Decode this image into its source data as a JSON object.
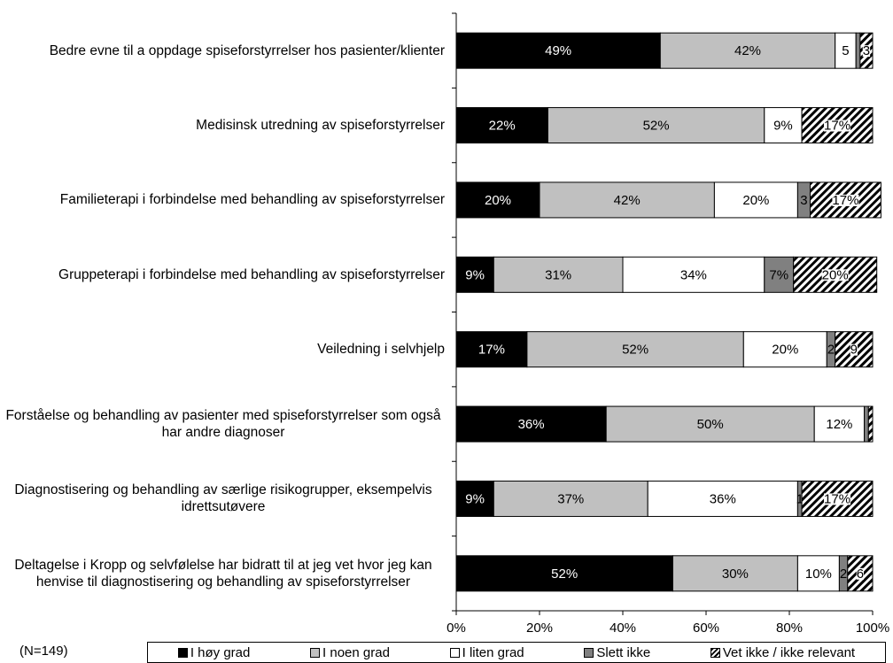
{
  "chart_data": {
    "type": "stacked-barh",
    "categories": [
      "Bedre evne til a oppdage spiseforstyrrelser hos pasienter/klienter",
      "Medisinsk utredning av spiseforstyrrelser",
      "Familieterapi i forbindelse med behandling av spiseforstyrrelser",
      "Gruppeterapi i forbindelse med behandling av spiseforstyrrelser",
      "Veiledning i selvhjelp",
      "Forståelse og behandling av pasienter med spiseforstyrrelser som også har andre diagnoser",
      "Diagnostisering og behandling av særlige risikogrupper, eksempelvis idrettsutøvere",
      "Deltagelse i Kropp og selvfølelse har bidratt til at jeg vet hvor jeg kan henvise til diagnostisering og behandling av spiseforstyrrelser"
    ],
    "series": [
      {
        "name": "I høy grad",
        "color": "#000000",
        "values": [
          49,
          22,
          20,
          9,
          17,
          36,
          9,
          52
        ],
        "value_labels": [
          "49%",
          "22%",
          "20%",
          "9%",
          "17%",
          "36%",
          "9%",
          "52%"
        ]
      },
      {
        "name": "I noen grad",
        "color": "#c0c0c0",
        "values": [
          42,
          52,
          42,
          31,
          52,
          50,
          37,
          30
        ],
        "value_labels": [
          "42%",
          "52%",
          "42%",
          "31%",
          "52%",
          "50%",
          "37%",
          "30%"
        ]
      },
      {
        "name": "I liten grad",
        "color": "#ffffff",
        "values": [
          5,
          9,
          20,
          34,
          20,
          12,
          36,
          10
        ],
        "value_labels": [
          "5",
          "9%",
          "20%",
          "34%",
          "20%",
          "12%",
          "36%",
          "10%"
        ]
      },
      {
        "name": "Slett ikke",
        "color": "#808080",
        "values": [
          1,
          0,
          3,
          7,
          2,
          1,
          1,
          2
        ],
        "value_labels": [
          null,
          null,
          "3",
          "7%",
          "2",
          null,
          "1",
          "2"
        ]
      },
      {
        "name": "Vet ikke / ikke relevant",
        "color": "hatch",
        "values": [
          3,
          17,
          17,
          20,
          9,
          1,
          17,
          6
        ],
        "value_labels": [
          "3",
          "17%",
          "17%",
          "20%",
          "9",
          null,
          "17%",
          "6"
        ]
      }
    ],
    "xlim": [
      0,
      100
    ],
    "xticks": [
      {
        "value": 0,
        "label": "0%"
      },
      {
        "value": 20,
        "label": "20%"
      },
      {
        "value": 40,
        "label": "40%"
      },
      {
        "value": 60,
        "label": "60%"
      },
      {
        "value": 80,
        "label": "80%"
      },
      {
        "value": 100,
        "label": "100%"
      }
    ],
    "note": "(N=149)",
    "legend": "bottom"
  }
}
